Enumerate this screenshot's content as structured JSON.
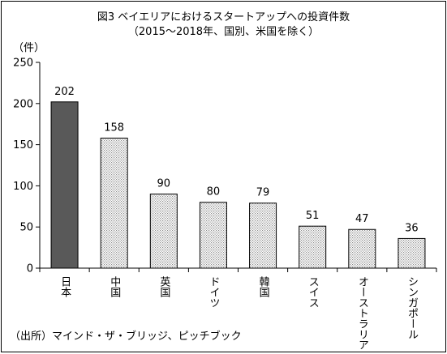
{
  "title": "図3 ベイエリアにおけるスタートアップへの投資件数",
  "subtitle": "（2015～2018年、国別、米国を除く）",
  "source": "（出所）マインド・ザ・ブリッジ、ピッチブック",
  "chart_data": {
    "type": "bar",
    "title": "図3 ベイエリアにおけるスタートアップへの投資件数",
    "subtitle": "（2015～2018年、国別、米国を除く）",
    "ylabel": "（件）",
    "xlabel": "",
    "categories": [
      "日本",
      "中国",
      "英国",
      "ドイツ",
      "韓国",
      "スイス",
      "オーストラリア",
      "シンガポール"
    ],
    "values": [
      202,
      158,
      90,
      80,
      79,
      51,
      47,
      36
    ],
    "data_labels": [
      "202",
      "158",
      "90",
      "80",
      "79",
      "51",
      "47",
      "36"
    ],
    "ylim": [
      0,
      250
    ],
    "yticks": [
      0,
      50,
      100,
      150,
      200,
      250
    ],
    "ytick_labels": [
      "0",
      "50",
      "100",
      "150",
      "200",
      "250"
    ],
    "grid": false,
    "legend": "none",
    "colors": {
      "highlight_fill": "#595959",
      "bar_pattern_fg": "#8c8c8c",
      "bar_pattern_bg": "#ffffff",
      "bar_outline": "#000000"
    }
  }
}
